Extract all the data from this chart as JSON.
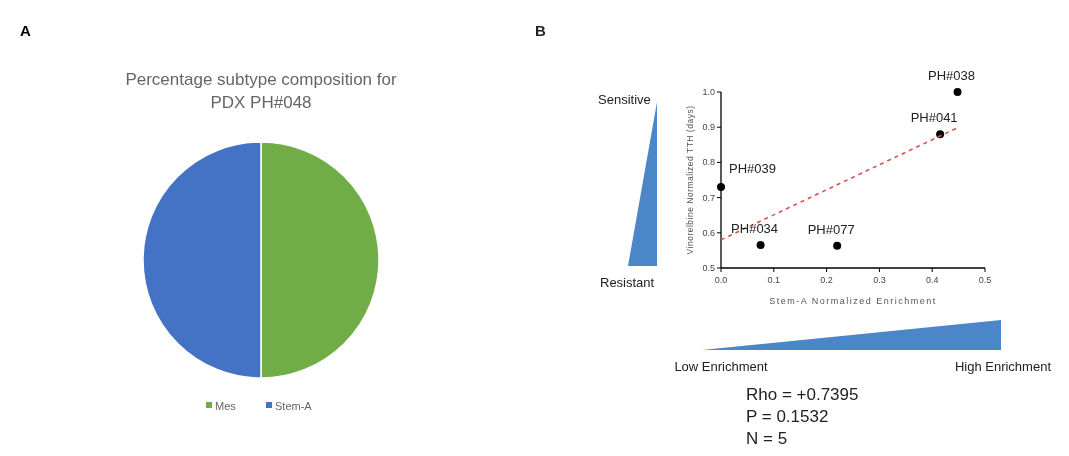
{
  "chart_data": [
    {
      "type": "pie",
      "title": "Percentage subtype composition for PDX PH#048",
      "categories": [
        "Mes",
        "Stem-A"
      ],
      "values": [
        50,
        50
      ],
      "colors": [
        "#70ad47",
        "#4472c4"
      ],
      "legend": "bottom",
      "annotations": [
        "A"
      ]
    },
    {
      "type": "scatter",
      "xlabel": "Stem-A Normalized Enrichment",
      "ylabel": "Vinorelbine Normalized TTH (days)",
      "xlim": [
        0,
        0.5
      ],
      "ylim": [
        0.5,
        1.0
      ],
      "xticks": [
        {
          "value": 0,
          "label": "0.0"
        },
        0.1,
        0.2,
        0.3,
        0.4,
        0.5
      ],
      "yticks": [
        0.5,
        0.6,
        0.7,
        0.8,
        0.9,
        {
          "value": 1,
          "label": "1.0"
        }
      ],
      "grid": false,
      "series": [
        {
          "type": "scatter",
          "color": "#000000",
          "marker": "circle",
          "x": [
            0,
            0.075,
            0.22,
            0.415,
            0.448
          ],
          "values": [
            0.73,
            0.565,
            0.563,
            0.88,
            1.0
          ]
        },
        {
          "type": "line",
          "color": "#d9534f",
          "line_style": "dashed",
          "marker": "none",
          "x": [
            0,
            0.45
          ],
          "values": [
            0.58,
            0.9
          ]
        }
      ],
      "annotations": [
        "B",
        "Sensitive",
        "Resistant",
        "Low Enrichment",
        "High Enrichment",
        "Rho = +0.7395",
        "P = 0.1532",
        "N = 5",
        {
          "text": "PH#039",
          "x": 0,
          "y": 0.73
        },
        {
          "text": "PH#034",
          "x": 0.075,
          "y": 0.565
        },
        {
          "text": "PH#077",
          "x": 0.22,
          "y": 0.563
        },
        {
          "text": "PH#041",
          "x": 0.415,
          "y": 0.88
        },
        {
          "text": "PH#038",
          "x": 0.448,
          "y": 1.0
        }
      ]
    }
  ]
}
